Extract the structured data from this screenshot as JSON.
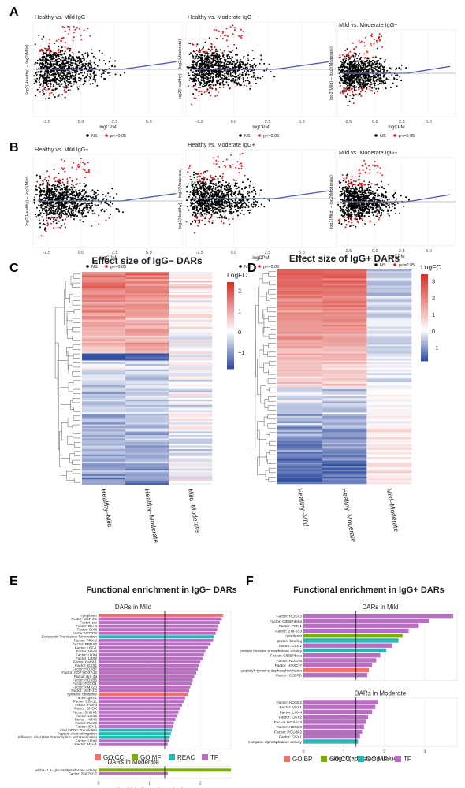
{
  "panel_labels": {
    "A": "A",
    "B": "B",
    "C": "C",
    "D": "D",
    "E": "E",
    "F": "F"
  },
  "colors": {
    "ns": "#000000",
    "sig": "#e41a1c",
    "loess": "#4d5bb5",
    "heat_high": "#d73027",
    "heat_low": "#4575b4",
    "go_cc": "#f0706a",
    "go_mf": "#27b5b4",
    "go_bp": "#f0706a",
    "go_cc_f": "#7cae00",
    "reac": "#27b5b4",
    "tf": "#b86fc2"
  },
  "chart_data": [
    {
      "id": "A1",
      "type": "scatter",
      "title": "Healthy vs. Mild IgG−",
      "xlabel": "logCPM",
      "ylabel": "log2(Healthy) − log2(Mild)",
      "xticks": [
        "-2.5",
        "0.0",
        "2.5",
        "5.0"
      ],
      "xlim": [
        -3.5,
        7.5
      ],
      "ylim": [
        -3,
        3
      ],
      "legend": [
        "NS",
        "p<=0.05"
      ]
    },
    {
      "id": "A2",
      "type": "scatter",
      "title": "Healthy vs. Moderate IgG−",
      "xlabel": "logCPM",
      "ylabel": "log2(Healthy) − log2(Moderate)",
      "xticks": [
        "-2.5",
        "0.0",
        "2.5",
        "5.0"
      ],
      "xlim": [
        -3.5,
        7.5
      ],
      "ylim": [
        -3,
        3
      ],
      "legend": [
        "NS",
        "p<=0.05"
      ]
    },
    {
      "id": "A3",
      "type": "scatter",
      "title": "Mild vs. Moderate IgG−",
      "xlabel": "logCPM",
      "ylabel": "log2(Mild) − log2(Moderate)",
      "xticks": [
        "-2.5",
        "0.0",
        "2.5",
        "5.0"
      ],
      "xlim": [
        -3.5,
        7.5
      ],
      "ylim": [
        -3,
        3
      ],
      "legend": [
        "NS",
        "p<=0.05"
      ]
    },
    {
      "id": "B1",
      "type": "scatter",
      "title": "Healthy vs. Mild IgG+",
      "xlabel": "logCPM",
      "ylabel": "log2(Healthy) − log2(Mild)",
      "xticks": [
        "-2.5",
        "0.0",
        "2.5",
        "5.0"
      ],
      "xlim": [
        -3.5,
        7.5
      ],
      "ylim": [
        -3,
        3
      ],
      "legend": [
        "NS",
        "p<=0.05"
      ]
    },
    {
      "id": "B2",
      "type": "scatter",
      "title": "Healthy vs. Moderate IgG+",
      "xlabel": "logCPM",
      "ylabel": "log2(Healthy) − log2(Moderate)",
      "xticks": [
        "-2.5",
        "0.0",
        "2.5",
        "5.0"
      ],
      "xlim": [
        -3.5,
        7.5
      ],
      "ylim": [
        -3,
        3
      ],
      "legend": [
        "NS",
        "p<=0.05"
      ]
    },
    {
      "id": "B3",
      "type": "scatter",
      "title": "Mild vs. Moderate IgG+",
      "xlabel": "logCPM",
      "ylabel": "log2(Mild) − log2(Moderate)",
      "xticks": [
        "-2.5",
        "0.0",
        "2.5",
        "5.0"
      ],
      "xlim": [
        -3.5,
        7.5
      ],
      "ylim": [
        -3,
        3
      ],
      "legend": [
        "NS",
        "p<=0.05"
      ]
    },
    {
      "id": "C",
      "type": "heatmap",
      "title": "Effect size of IgG− DARs",
      "columns": [
        "Healthy–Mild",
        "Healthy–Moderate",
        "Mild–Moderate"
      ],
      "legend_title": "LogFC",
      "legend_ticks": [
        "2",
        "1",
        "0",
        "−1"
      ],
      "scale": [
        -1.8,
        2.4
      ]
    },
    {
      "id": "D",
      "type": "heatmap",
      "title": "Effect size of IgG+ DARs",
      "columns": [
        "Healthy–Mild",
        "Healthy–Moderate",
        "Mild–Moderate"
      ],
      "legend_title": "LogFC",
      "legend_ticks": [
        "3",
        "2",
        "1",
        "0",
        "−1"
      ],
      "scale": [
        -1.8,
        3.4
      ]
    },
    {
      "id": "E",
      "type": "bar",
      "title": "Functional enrichment in IgG− DARs",
      "xlabel": "−log10(adjusted p value)",
      "xticks": [
        "0",
        "1",
        "2"
      ],
      "xlim": [
        0,
        2.6
      ],
      "threshold": 1.3,
      "legend": [
        {
          "name": "GO:CC",
          "key": "go_cc"
        },
        {
          "name": "GO:MF",
          "key": "go_mf_e"
        },
        {
          "name": "REAC",
          "key": "reac"
        },
        {
          "name": "TF",
          "key": "tf"
        }
      ],
      "groups": [
        {
          "name": "DARs in Mild",
          "bars": [
            {
              "label": "cytoplasm",
              "value": 2.45,
              "cat": "GO:CC"
            },
            {
              "label": "Factor: MEF-2C",
              "value": 2.42,
              "cat": "TF"
            },
            {
              "label": "Factor: tax",
              "value": 2.38,
              "cat": "TF"
            },
            {
              "label": "Factor: Otx-3",
              "value": 2.35,
              "cat": "TF"
            },
            {
              "label": "Factor: SIX6",
              "value": 2.33,
              "cat": "TF"
            },
            {
              "label": "Factor: HOXD8",
              "value": 2.3,
              "cat": "TF"
            },
            {
              "label": "Eukaryotic Translation Termination",
              "value": 2.27,
              "cat": "REAC"
            },
            {
              "label": "Factor: PRX-2",
              "value": 2.25,
              "cat": "TF"
            },
            {
              "label": "Factor: PRRX2",
              "value": 2.2,
              "cat": "TF"
            },
            {
              "label": "Factor: LEF-1",
              "value": 2.15,
              "cat": "TF"
            },
            {
              "label": "Factor: Hbo8",
              "value": 2.1,
              "cat": "TF"
            },
            {
              "label": "Factor: LHX4",
              "value": 2.07,
              "cat": "TF"
            },
            {
              "label": "Factor: LBX2",
              "value": 2.04,
              "cat": "TF"
            },
            {
              "label": "Factor: Barhl-1",
              "value": 2.0,
              "cat": "TF"
            },
            {
              "label": "Factor: GSX1",
              "value": 1.98,
              "cat": "TF"
            },
            {
              "label": "Factor: HOXB7",
              "value": 1.95,
              "cat": "TF"
            },
            {
              "label": "Factor: CDP:HOXA13",
              "value": 1.92,
              "cat": "TF"
            },
            {
              "label": "Factor: Brn-3a",
              "value": 1.88,
              "cat": "TF"
            },
            {
              "label": "Factor: HOXB5",
              "value": 1.85,
              "cat": "TF"
            },
            {
              "label": "Factor: FOXO1",
              "value": 1.83,
              "cat": "TF"
            },
            {
              "label": "Factor: PMX2B",
              "value": 1.8,
              "cat": "TF"
            },
            {
              "label": "Factor: MEF-2D",
              "value": 1.78,
              "cat": "TF"
            },
            {
              "label": "cytosolic ribosome",
              "value": 1.75,
              "cat": "GO:CC"
            },
            {
              "label": "Factor: gsh-1",
              "value": 1.7,
              "cat": "TF"
            },
            {
              "label": "Factor: EDX1L",
              "value": 1.67,
              "cat": "TF"
            },
            {
              "label": "Factor: Pax-4",
              "value": 1.64,
              "cat": "TF"
            },
            {
              "label": "Factor: SHOX",
              "value": 1.6,
              "cat": "TF"
            },
            {
              "label": "Factor: SHOX2",
              "value": 1.57,
              "cat": "TF"
            },
            {
              "label": "Factor: LHX9",
              "value": 1.54,
              "cat": "TF"
            },
            {
              "label": "Factor: HMX3",
              "value": 1.51,
              "cat": "TF"
            },
            {
              "label": "Factor: RAX2",
              "value": 1.48,
              "cat": "TF"
            },
            {
              "label": "Factor: ISX-1",
              "value": 1.46,
              "cat": "TF"
            },
            {
              "label": "Viral mRNA Translation",
              "value": 1.44,
              "cat": "REAC"
            },
            {
              "label": "Peptide chain elongation",
              "value": 1.42,
              "cat": "REAC"
            },
            {
              "label": "Influenza Viral RNA Transcription and Replication",
              "value": 1.4,
              "cat": "REAC"
            },
            {
              "label": "Factor: LHX2",
              "value": 1.38,
              "cat": "TF"
            },
            {
              "label": "Factor: Msx-1",
              "value": 1.36,
              "cat": "TF"
            }
          ]
        },
        {
          "name": "DARs in Moderate",
          "bars": [
            {
              "label": "alpha−1,2−glucosyltransferase activity",
              "value": 2.6,
              "cat": "GO:MF"
            },
            {
              "label": "Factor: ZNF75CP",
              "value": 1.36,
              "cat": "TF"
            }
          ]
        }
      ]
    },
    {
      "id": "F",
      "type": "bar",
      "title": "Functional enrichment in IgG+ DARs",
      "xlabel": "−log10(adjusted p value)",
      "xticks": [
        "0",
        "1",
        "2",
        "3"
      ],
      "xlim": [
        0,
        3.8
      ],
      "threshold": 1.3,
      "legend": [
        {
          "name": "GO:BP",
          "key": "go_bp"
        },
        {
          "name": "GO:CC",
          "key": "go_cc_f"
        },
        {
          "name": "GO:MF",
          "key": "go_mf_f"
        },
        {
          "name": "TF",
          "key": "tf"
        }
      ],
      "groups": [
        {
          "name": "DARs in Mild",
          "bars": [
            {
              "label": "Factor: HOXA3",
              "value": 3.7,
              "cat": "TF"
            },
            {
              "label": "Factor: C/EBPdelta",
              "value": 3.1,
              "cat": "TF"
            },
            {
              "label": "Factor: PMX1",
              "value": 2.85,
              "cat": "TF"
            },
            {
              "label": "Factor: ZNF333",
              "value": 2.6,
              "cat": "TF"
            },
            {
              "label": "cytoplasm",
              "value": 2.45,
              "cat": "GO:CC"
            },
            {
              "label": "protein binding",
              "value": 2.35,
              "cat": "GO:MF"
            },
            {
              "label": "Factor: Cdx-1",
              "value": 2.2,
              "cat": "TF"
            },
            {
              "label": "protein tyrosine phosphatase activity",
              "value": 2.05,
              "cat": "GO:MF"
            },
            {
              "label": "Factor: C/EBPbeta",
              "value": 1.9,
              "cat": "TF"
            },
            {
              "label": "Factor: HOXA6",
              "value": 1.8,
              "cat": "TF"
            },
            {
              "label": "Factor: HOXC-7",
              "value": 1.7,
              "cat": "TF"
            },
            {
              "label": "peptidyl−tyrosine dephosphorylation",
              "value": 1.62,
              "cat": "GO:BP"
            },
            {
              "label": "Factor: CEBPD",
              "value": 1.58,
              "cat": "TF"
            }
          ]
        },
        {
          "name": "DARs in Moderate",
          "bars": [
            {
              "label": "Factor: HOXB2",
              "value": 1.85,
              "cat": "TF"
            },
            {
              "label": "Factor: VSX1",
              "value": 1.78,
              "cat": "TF"
            },
            {
              "label": "Factor: LHX4",
              "value": 1.7,
              "cat": "TF"
            },
            {
              "label": "Factor: GSX2",
              "value": 1.6,
              "cat": "TF"
            },
            {
              "label": "Factor: HOXA13",
              "value": 1.55,
              "cat": "TF"
            },
            {
              "label": "Factor: HOXB6",
              "value": 1.5,
              "cat": "TF"
            },
            {
              "label": "Factor: POU3F2",
              "value": 1.45,
              "cat": "TF"
            },
            {
              "label": "Factor: GSX1",
              "value": 1.4,
              "cat": "TF"
            },
            {
              "label": "inorganic diphosphatase activity",
              "value": 1.35,
              "cat": "GO:MF"
            }
          ]
        }
      ]
    }
  ]
}
